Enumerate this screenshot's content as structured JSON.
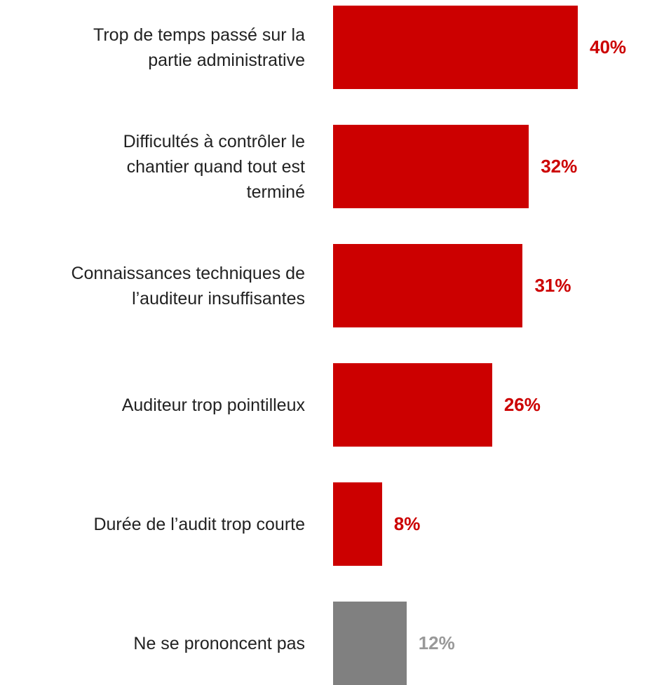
{
  "chart_data": {
    "type": "barh",
    "categories": [
      "Trop de temps passé sur la\npartie administrative",
      "Difficultés à contrôler le\nchantier quand tout est\nterminé",
      "Connaissances techniques de\nl’auditeur insuffisantes",
      "Auditeur trop pointilleux",
      "Durée de l’audit trop courte",
      "Ne se prononcent pas"
    ],
    "values": [
      40,
      32,
      31,
      26,
      8,
      12
    ],
    "value_labels": [
      "40%",
      "32%",
      "31%",
      "26%",
      "8%",
      "12%"
    ],
    "colors": [
      "#cc0000",
      "#cc0000",
      "#cc0000",
      "#cc0000",
      "#cc0000",
      "#808080"
    ],
    "label_colors": [
      "#cc0000",
      "#cc0000",
      "#cc0000",
      "#cc0000",
      "#cc0000",
      "#999999"
    ]
  }
}
